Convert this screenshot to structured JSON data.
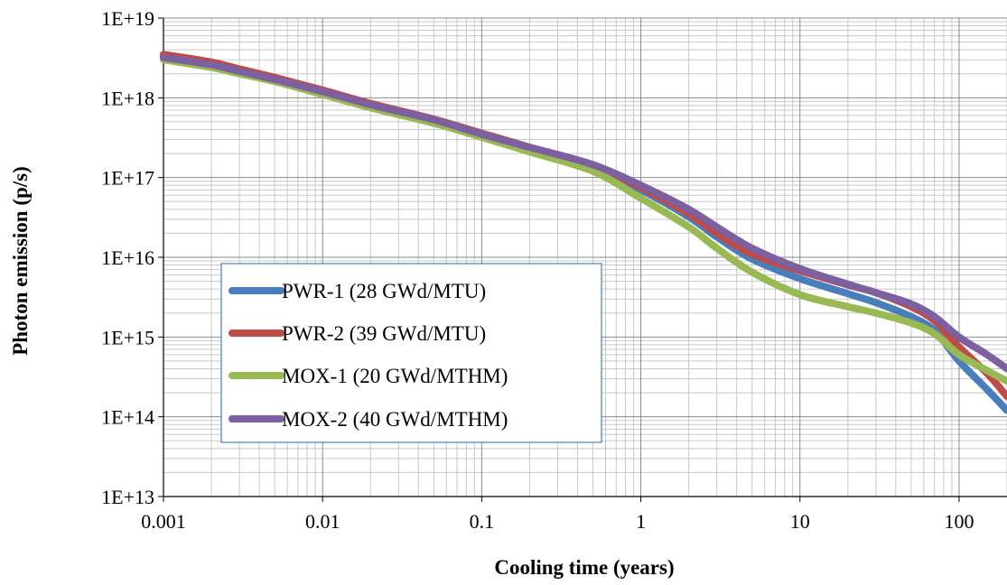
{
  "chart_data": {
    "type": "line",
    "xlabel": "Cooling time (years)",
    "ylabel": "Photon emission (p/s)",
    "x_scale": "log",
    "y_scale": "log",
    "xlim": [
      0.001,
      200
    ],
    "ylim": [
      10000000000000.0,
      1e+19
    ],
    "x_ticks": [
      {
        "value": 0.001,
        "label": "0.001"
      },
      {
        "value": 0.01,
        "label": "0.01"
      },
      {
        "value": 0.1,
        "label": "0.1"
      },
      {
        "value": 1,
        "label": "1"
      },
      {
        "value": 10,
        "label": "10"
      },
      {
        "value": 100,
        "label": "100"
      }
    ],
    "y_ticks": [
      {
        "value": 10000000000000.0,
        "label": "1E+13"
      },
      {
        "value": 100000000000000.0,
        "label": "1E+14"
      },
      {
        "value": 1000000000000000.0,
        "label": "1E+15"
      },
      {
        "value": 1e+16,
        "label": "1E+16"
      },
      {
        "value": 1e+17,
        "label": "1E+17"
      },
      {
        "value": 1e+18,
        "label": "1E+18"
      },
      {
        "value": 1e+19,
        "label": "1E+19"
      }
    ],
    "grid": true,
    "minor_grid": true,
    "legend_position": "bottom-left",
    "series": [
      {
        "name": "PWR-1 (28 GWd/MTU)",
        "color": "#4A7EBB",
        "points": [
          [
            0.001,
            3.3e+18
          ],
          [
            0.002,
            2.6e+18
          ],
          [
            0.003,
            2.1e+18
          ],
          [
            0.005,
            1.7e+18
          ],
          [
            0.01,
            1.2e+18
          ],
          [
            0.02,
            8.2e+17
          ],
          [
            0.05,
            5.2e+17
          ],
          [
            0.1,
            3.5e+17
          ],
          [
            0.2,
            2.3e+17
          ],
          [
            0.5,
            1.3e+17
          ],
          [
            1,
            7e+16
          ],
          [
            2,
            3.2e+16
          ],
          [
            3,
            1.8e+16
          ],
          [
            5,
            9500000000000000.0
          ],
          [
            10,
            5400000000000000.0
          ],
          [
            20,
            3500000000000000.0
          ],
          [
            30,
            2700000000000000.0
          ],
          [
            50,
            1800000000000000.0
          ],
          [
            70,
            1200000000000000.0
          ],
          [
            100,
            500000000000000.0
          ],
          [
            150,
            220000000000000.0
          ],
          [
            200,
            120000000000000.0
          ]
        ]
      },
      {
        "name": "PWR-2 (39 GWd/MTU)",
        "color": "#BE4B48",
        "points": [
          [
            0.001,
            3.5e+18
          ],
          [
            0.002,
            2.8e+18
          ],
          [
            0.003,
            2.3e+18
          ],
          [
            0.005,
            1.8e+18
          ],
          [
            0.01,
            1.25e+18
          ],
          [
            0.02,
            8.5e+17
          ],
          [
            0.05,
            5.4e+17
          ],
          [
            0.1,
            3.6e+17
          ],
          [
            0.2,
            2.4e+17
          ],
          [
            0.5,
            1.4e+17
          ],
          [
            1,
            7.5e+16
          ],
          [
            2,
            3.5e+16
          ],
          [
            3,
            2e+16
          ],
          [
            5,
            1.1e+16
          ],
          [
            10,
            6800000000000000.0
          ],
          [
            20,
            4500000000000000.0
          ],
          [
            30,
            3600000000000000.0
          ],
          [
            50,
            2400000000000000.0
          ],
          [
            70,
            1600000000000000.0
          ],
          [
            100,
            750000000000000.0
          ],
          [
            150,
            350000000000000.0
          ],
          [
            200,
            180000000000000.0
          ]
        ]
      },
      {
        "name": "MOX-1 (20 GWd/MTHM)",
        "color": "#98B954",
        "points": [
          [
            0.001,
            3e+18
          ],
          [
            0.002,
            2.4e+18
          ],
          [
            0.003,
            2e+18
          ],
          [
            0.005,
            1.6e+18
          ],
          [
            0.01,
            1.1e+18
          ],
          [
            0.02,
            7.5e+17
          ],
          [
            0.05,
            4.8e+17
          ],
          [
            0.1,
            3.2e+17
          ],
          [
            0.2,
            2.1e+17
          ],
          [
            0.5,
            1.2e+17
          ],
          [
            1,
            5.5e+16
          ],
          [
            2,
            2.4e+16
          ],
          [
            3,
            1.3e+16
          ],
          [
            5,
            6500000000000000.0
          ],
          [
            10,
            3400000000000000.0
          ],
          [
            20,
            2400000000000000.0
          ],
          [
            30,
            2000000000000000.0
          ],
          [
            50,
            1500000000000000.0
          ],
          [
            70,
            1100000000000000.0
          ],
          [
            100,
            600000000000000.0
          ],
          [
            150,
            380000000000000.0
          ],
          [
            200,
            280000000000000.0
          ]
        ]
      },
      {
        "name": "MOX-2 (40 GWd/MTHM)",
        "color": "#7D60A0",
        "points": [
          [
            0.001,
            3.2e+18
          ],
          [
            0.002,
            2.6e+18
          ],
          [
            0.003,
            2.15e+18
          ],
          [
            0.005,
            1.7e+18
          ],
          [
            0.01,
            1.2e+18
          ],
          [
            0.02,
            8.2e+17
          ],
          [
            0.05,
            5.3e+17
          ],
          [
            0.1,
            3.5e+17
          ],
          [
            0.2,
            2.4e+17
          ],
          [
            0.5,
            1.45e+17
          ],
          [
            1,
            8e+16
          ],
          [
            2,
            4e+16
          ],
          [
            3,
            2.4e+16
          ],
          [
            5,
            1.3e+16
          ],
          [
            10,
            7200000000000000.0
          ],
          [
            20,
            4600000000000000.0
          ],
          [
            30,
            3600000000000000.0
          ],
          [
            50,
            2600000000000000.0
          ],
          [
            70,
            1800000000000000.0
          ],
          [
            100,
            1000000000000000.0
          ],
          [
            150,
            600000000000000.0
          ],
          [
            200,
            400000000000000.0
          ]
        ]
      }
    ]
  }
}
